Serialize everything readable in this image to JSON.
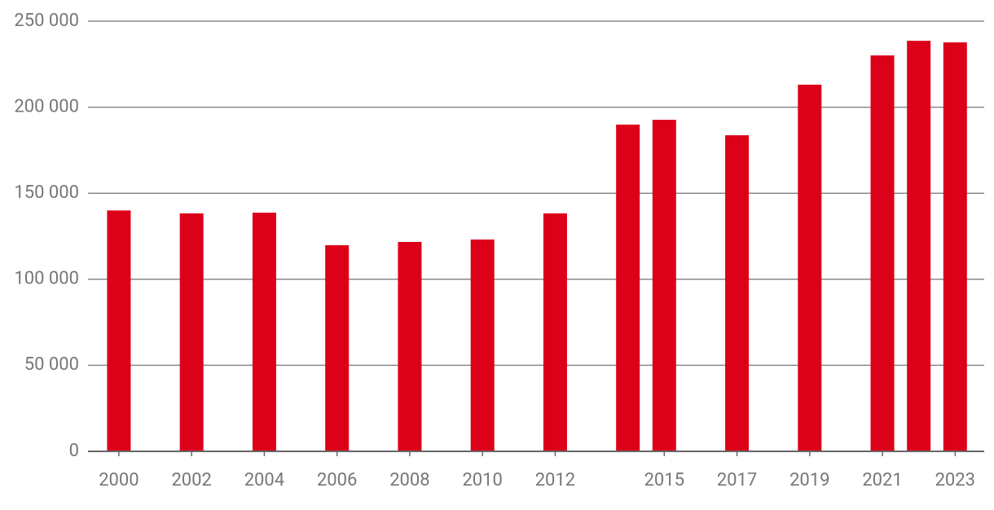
{
  "chart_data": {
    "type": "bar",
    "color": "#dc0019",
    "grid": true,
    "x": [
      2000,
      2002,
      2004,
      2006,
      2008,
      2010,
      2012,
      2014,
      2015,
      2017,
      2019,
      2021,
      2022,
      2023
    ],
    "values": [
      140000,
      138300,
      138700,
      119800,
      121700,
      123100,
      138300,
      189900,
      192700,
      183700,
      213100,
      230100,
      238600,
      237700
    ],
    "xlim": [
      1999.15,
      2023.8
    ],
    "xticks": [
      2000,
      2002,
      2004,
      2006,
      2008,
      2010,
      2012,
      2015,
      2017,
      2019,
      2021,
      2023
    ],
    "ylim": [
      0,
      250000
    ],
    "yticks": [
      0,
      {
        "value": 50000,
        "label": "50 000"
      },
      {
        "value": 100000,
        "label": "100 000"
      },
      {
        "value": 150000,
        "label": "150 000"
      },
      {
        "value": 200000,
        "label": "200 000"
      },
      {
        "value": 250000,
        "label": "250 000"
      }
    ]
  }
}
